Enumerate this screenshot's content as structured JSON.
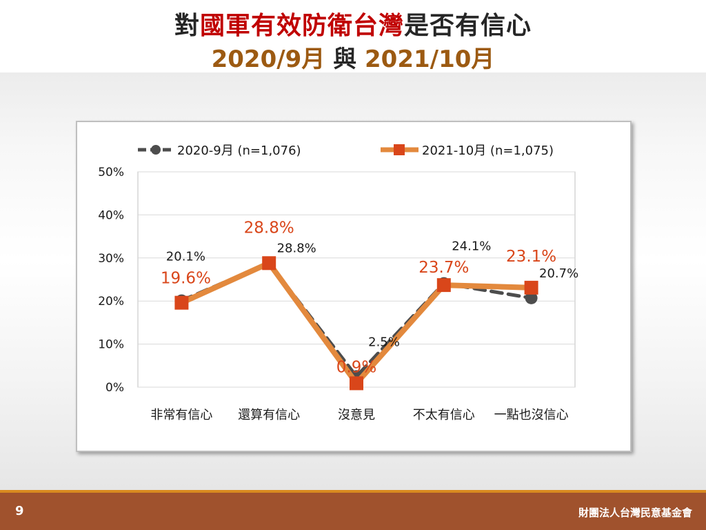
{
  "title": {
    "part_before": "對",
    "part_highlight": "國軍有效防衛台灣",
    "part_after": "是否有信心",
    "date1": "2020/9月",
    "connector": " 與 ",
    "date2": "2021/10月"
  },
  "footer": {
    "page_number": "9",
    "org_name": "財團法人台灣民意基金會"
  },
  "colors": {
    "series_2020": "#4d4d4d",
    "series_2021": "#e3893d",
    "marker_2021": "#d9461a",
    "label_2021": "#d9461a",
    "label_2020": "#1a1a1a",
    "highlight": "#c00000",
    "date": "#9c5a12",
    "footer": "#a0522d"
  },
  "chart_data": {
    "type": "line",
    "categories": [
      "非常有信心",
      "還算有信心",
      "沒意見",
      "不太有信心",
      "一點也沒信心"
    ],
    "ylim": [
      0,
      50
    ],
    "yticks": [
      0,
      10,
      20,
      30,
      40,
      50
    ],
    "ytick_labels": [
      "0%",
      "10%",
      "20%",
      "30%",
      "40%",
      "50%"
    ],
    "grid": true,
    "legend_position": "top",
    "series": [
      {
        "name": "2020-9月 (n=1,076)",
        "style": "dashed",
        "marker": "circle",
        "values": [
          20.1,
          28.8,
          2.5,
          24.1,
          20.7
        ],
        "labels": [
          "20.1%",
          "28.8%",
          "2.5%",
          "24.1%",
          "20.7%"
        ]
      },
      {
        "name": "2021-10月 (n=1,075)",
        "style": "solid",
        "marker": "square",
        "values": [
          19.6,
          28.8,
          0.9,
          23.7,
          23.1
        ],
        "labels": [
          "19.6%",
          "28.8%",
          "0.9%",
          "23.7%",
          "23.1%"
        ]
      }
    ]
  }
}
